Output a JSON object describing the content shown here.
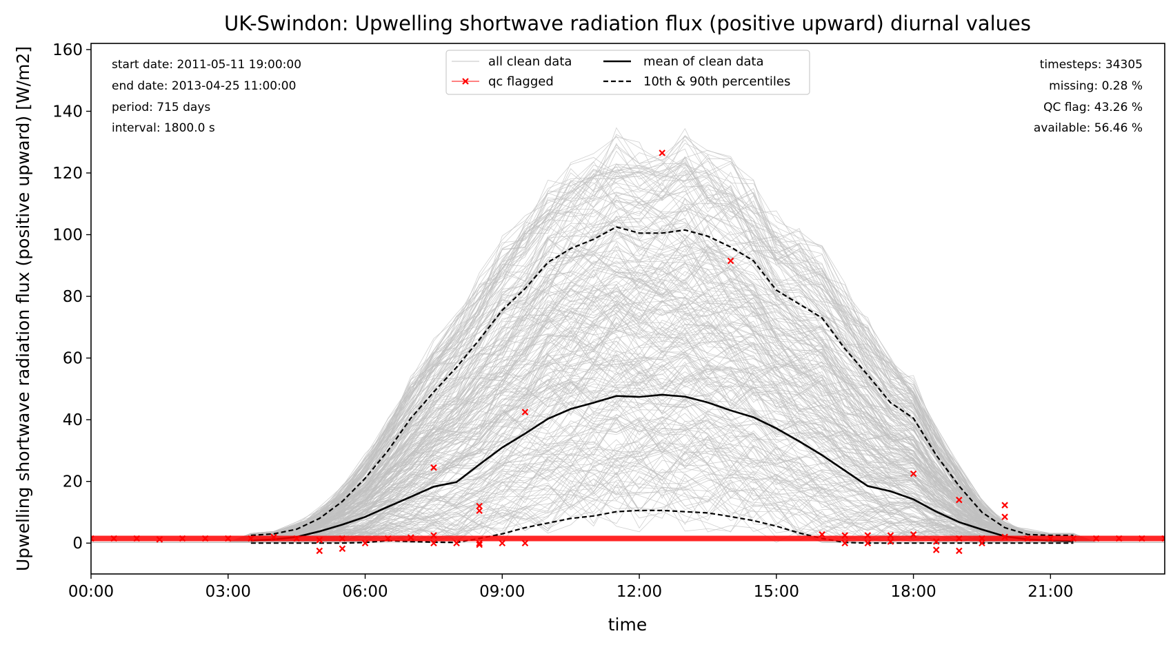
{
  "chart_data": {
    "type": "line",
    "title": "UK-Swindon: Upwelling shortwave radiation flux (positive upward) diurnal values",
    "xlabel": "time",
    "ylabel": "Upwelling shortwave radiation flux (positive upward) [W/m2]",
    "xlim": [
      0,
      23.5
    ],
    "ylim": [
      -10,
      162
    ],
    "x_ticks": [
      {
        "x": 0,
        "label": "00:00"
      },
      {
        "x": 3,
        "label": "03:00"
      },
      {
        "x": 6,
        "label": "06:00"
      },
      {
        "x": 9,
        "label": "09:00"
      },
      {
        "x": 12,
        "label": "12:00"
      },
      {
        "x": 15,
        "label": "15:00"
      },
      {
        "x": 18,
        "label": "18:00"
      },
      {
        "x": 21,
        "label": "21:00"
      }
    ],
    "y_ticks": [
      {
        "y": 0,
        "label": "0"
      },
      {
        "y": 20,
        "label": "20"
      },
      {
        "y": 40,
        "label": "40"
      },
      {
        "y": 60,
        "label": "60"
      },
      {
        "y": 80,
        "label": "80"
      },
      {
        "y": 100,
        "label": "100"
      },
      {
        "y": 120,
        "label": "120"
      },
      {
        "y": 140,
        "label": "140"
      },
      {
        "y": 160,
        "label": "160"
      }
    ],
    "info_left": [
      "start date: 2011-05-11 19:00:00",
      "end date: 2013-04-25 11:00:00",
      "period: 715 days",
      "interval: 1800.0 s"
    ],
    "info_right": [
      "timesteps: 34305",
      "missing: 0.28 %",
      "QC flag: 43.26 %",
      "available: 56.46 %"
    ],
    "legend": {
      "placement": "top-center",
      "entries": [
        {
          "label": "all clean data",
          "style": "thin-gray"
        },
        {
          "label": "qc flagged",
          "style": "red-x"
        },
        {
          "label": "mean of clean data",
          "style": "solid-black"
        },
        {
          "label": "10th & 90th percentiles",
          "style": "dashed-black"
        }
      ]
    },
    "colors": {
      "clean": "#c0c0c0",
      "flag": "#ff0000",
      "mean": "#000000",
      "percentile": "#000000"
    },
    "series": [
      {
        "name": "mean of clean data",
        "x": [
          3.5,
          4.0,
          4.5,
          5.0,
          5.5,
          6.0,
          6.5,
          7.0,
          7.5,
          8.0,
          8.5,
          9.0,
          9.5,
          10.0,
          10.5,
          11.0,
          11.5,
          12.0,
          12.5,
          13.0,
          13.5,
          14.0,
          14.5,
          15.0,
          15.5,
          16.0,
          16.5,
          17.0,
          17.5,
          18.0,
          18.5,
          19.0,
          19.5,
          20.0,
          20.5,
          21.0,
          21.5
        ],
        "y": [
          0.8,
          1.2,
          2.0,
          3.8,
          6.0,
          8.5,
          11.8,
          15.0,
          18.3,
          19.8,
          25.5,
          31.0,
          35.5,
          40.3,
          43.5,
          45.5,
          47.7,
          47.4,
          48.1,
          47.5,
          45.6,
          43.0,
          40.8,
          37.2,
          33.0,
          28.5,
          23.5,
          18.5,
          16.8,
          14.2,
          10.2,
          6.8,
          4.4,
          2.2,
          1.2,
          0.8,
          0.6
        ]
      },
      {
        "name": "90th percentile",
        "x": [
          3.5,
          4.0,
          4.5,
          5.0,
          5.5,
          6.0,
          6.5,
          7.0,
          7.5,
          8.0,
          8.5,
          9.0,
          9.5,
          10.0,
          10.5,
          11.0,
          11.5,
          12.0,
          12.5,
          13.0,
          13.5,
          14.0,
          14.5,
          15.0,
          15.5,
          16.0,
          16.5,
          17.0,
          17.5,
          18.0,
          18.5,
          19.0,
          19.5,
          20.0,
          20.5,
          21.0,
          21.5
        ],
        "y": [
          2.5,
          3.0,
          4.5,
          8.0,
          13.5,
          21.0,
          30.0,
          40.5,
          49.0,
          57.0,
          66.0,
          75.5,
          82.5,
          91.0,
          95.5,
          98.5,
          102.5,
          100.5,
          100.5,
          101.5,
          99.5,
          96.0,
          91.5,
          82.0,
          77.5,
          73.0,
          63.0,
          54.5,
          45.5,
          40.5,
          28.5,
          18.5,
          10.0,
          5.0,
          2.8,
          2.5,
          2.5
        ]
      },
      {
        "name": "10th percentile",
        "x": [
          3.5,
          4.0,
          4.5,
          5.0,
          5.5,
          6.0,
          6.5,
          7.0,
          7.5,
          8.0,
          8.5,
          9.0,
          9.5,
          10.0,
          10.5,
          11.0,
          11.5,
          12.0,
          12.5,
          13.0,
          13.5,
          14.0,
          14.5,
          15.0,
          15.5,
          16.0,
          16.5,
          17.0,
          17.5,
          18.0,
          18.5,
          19.0,
          19.5,
          20.0,
          20.5,
          21.0,
          21.5
        ],
        "y": [
          0.0,
          0.0,
          0.0,
          0.0,
          0.0,
          0.2,
          0.8,
          0.5,
          0.3,
          0.2,
          1.5,
          3.0,
          5.0,
          6.5,
          8.0,
          8.8,
          10.2,
          10.6,
          10.6,
          10.2,
          9.8,
          8.6,
          7.3,
          5.5,
          3.3,
          1.5,
          0.2,
          0.0,
          0.0,
          0.0,
          0.0,
          0.0,
          0.0,
          0.0,
          0.0,
          0.0,
          0.0
        ]
      },
      {
        "name": "qc flagged",
        "x": [
          0.0,
          0.5,
          1.0,
          1.5,
          2.0,
          2.5,
          3.0,
          3.5,
          4.0,
          4.5,
          5.0,
          5.0,
          5.5,
          5.5,
          6.0,
          6.5,
          7.0,
          7.5,
          7.5,
          7.5,
          8.0,
          8.5,
          8.5,
          8.5,
          8.5,
          9.0,
          9.5,
          9.5,
          12.5,
          14.0,
          16.0,
          16.5,
          16.5,
          17.0,
          17.0,
          17.5,
          17.5,
          18.0,
          18.0,
          18.5,
          18.5,
          19.0,
          19.0,
          19.0,
          19.5,
          19.5,
          20.0,
          20.0,
          20.0,
          20.5,
          21.0,
          21.5,
          22.0,
          22.5,
          23.0,
          23.5
        ],
        "y": [
          1.5,
          1.5,
          1.5,
          1.2,
          1.5,
          1.5,
          1.5,
          1.5,
          2.0,
          1.5,
          1.0,
          -2.5,
          1.5,
          -1.8,
          0.0,
          1.5,
          1.8,
          24.5,
          2.5,
          0.0,
          0.0,
          12.0,
          10.5,
          0.0,
          -0.5,
          0.0,
          42.5,
          0.0,
          126.5,
          91.5,
          2.8,
          2.5,
          0.0,
          2.5,
          0.0,
          2.5,
          0.5,
          22.5,
          2.8,
          0.5,
          -2.2,
          14.0,
          1.5,
          -2.5,
          1.5,
          0.0,
          12.3,
          8.5,
          2.0,
          1.5,
          1.5,
          1.5,
          1.5,
          1.5,
          1.5,
          1.5
        ]
      }
    ]
  }
}
